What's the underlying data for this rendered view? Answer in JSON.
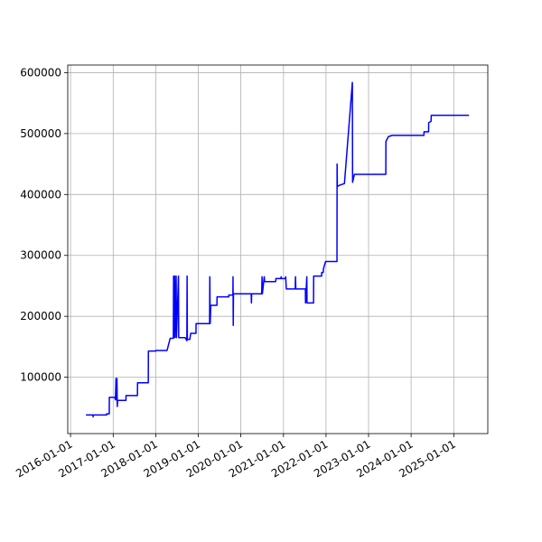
{
  "chart_data": {
    "type": "line",
    "grid": true,
    "xlim": [
      "2015-12-08",
      "2025-10-20"
    ],
    "xticks": [
      "2016-01-01",
      "2017-01-01",
      "2018-01-01",
      "2019-01-01",
      "2020-01-01",
      "2021-01-01",
      "2022-01-01",
      "2023-01-01",
      "2024-01-01",
      "2025-01-01"
    ],
    "ylim": [
      7500,
      612500
    ],
    "yticks": [
      100000,
      200000,
      300000,
      400000,
      500000,
      600000
    ],
    "x": [
      "2016-05-12",
      "2016-07-12",
      "2016-07-13",
      "2016-07-14",
      "2016-11-05",
      "2016-11-06",
      "2016-11-28",
      "2016-11-29",
      "2017-01-15",
      "2017-01-20",
      "2017-01-25",
      "2017-01-28",
      "2017-02-02",
      "2017-02-05",
      "2017-02-08",
      "2017-04-20",
      "2017-04-21",
      "2017-07-28",
      "2017-07-29",
      "2017-10-29",
      "2017-10-30",
      "2018-01-01",
      "2018-01-02",
      "2018-04-08",
      "2018-05-05",
      "2018-06-01",
      "2018-06-03",
      "2018-06-05",
      "2018-06-12",
      "2018-06-15",
      "2018-06-25",
      "2018-06-28",
      "2018-07-15",
      "2018-07-17",
      "2018-09-10",
      "2018-09-25",
      "2018-09-27",
      "2018-09-29",
      "2018-10-20",
      "2018-10-28",
      "2018-12-12",
      "2018-12-13",
      "2019-04-08",
      "2019-04-10",
      "2019-04-13",
      "2019-04-18",
      "2019-06-10",
      "2019-06-11",
      "2019-09-19",
      "2019-09-20",
      "2019-10-25",
      "2019-10-26",
      "2019-10-28",
      "2019-10-30",
      "2020-03-30",
      "2020-04-01",
      "2020-04-03",
      "2020-06-28",
      "2020-07-01",
      "2020-07-04",
      "2020-07-20",
      "2020-07-23",
      "2020-10-26",
      "2020-10-28",
      "2020-12-10",
      "2020-12-12",
      "2020-12-14",
      "2021-01-18",
      "2021-01-20",
      "2021-01-25",
      "2021-04-12",
      "2021-04-14",
      "2021-04-17",
      "2021-07-08",
      "2021-07-09",
      "2021-07-20",
      "2021-07-22",
      "2021-09-16",
      "2021-09-17",
      "2021-11-24",
      "2021-11-25",
      "2021-12-08",
      "2021-12-10",
      "2021-12-28",
      "2022-04-05",
      "2022-04-06",
      "2022-04-08",
      "2022-04-25",
      "2022-06-08",
      "2022-08-15",
      "2022-08-17",
      "2022-09-01",
      "2023-05-29",
      "2023-05-30",
      "2023-06-20",
      "2023-07-22",
      "2024-04-20",
      "2024-04-21",
      "2024-05-30",
      "2024-05-31",
      "2024-06-20",
      "2024-06-22",
      "2025-05-12"
    ],
    "series": [
      {
        "color": "#0000ff",
        "values": [
          38000,
          38000,
          35000,
          38000,
          38000,
          40000,
          40000,
          67000,
          67000,
          63000,
          98000,
          63000,
          98000,
          52000,
          62000,
          62000,
          70000,
          70000,
          91000,
          91000,
          143000,
          143000,
          144000,
          144000,
          164000,
          164000,
          266000,
          165000,
          266000,
          165000,
          266000,
          165000,
          266000,
          165000,
          165000,
          160000,
          266000,
          162000,
          162000,
          172000,
          172000,
          188000,
          188000,
          265000,
          188000,
          218000,
          218000,
          232000,
          232000,
          235000,
          235000,
          265000,
          185000,
          237000,
          237000,
          222000,
          237000,
          237000,
          265000,
          237000,
          265000,
          257000,
          257000,
          262000,
          262000,
          265000,
          262000,
          262000,
          265000,
          245000,
          245000,
          265000,
          245000,
          245000,
          222000,
          265000,
          222000,
          222000,
          266000,
          266000,
          272000,
          272000,
          278000,
          290000,
          290000,
          450000,
          413000,
          415000,
          418000,
          584000,
          420000,
          433000,
          433000,
          487000,
          495000,
          497000,
          497000,
          503000,
          503000,
          518000,
          520000,
          530000,
          530000
        ]
      }
    ]
  }
}
